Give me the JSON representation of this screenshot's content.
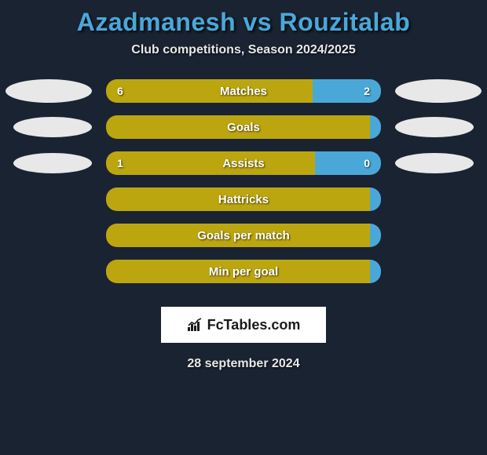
{
  "background_color": "#1a2332",
  "title": "Azadmanesh vs Rouzitalab",
  "title_color": "#4aa8d8",
  "subtitle": "Club competitions, Season 2024/2025",
  "player_left_color": "#bca610",
  "player_right_color": "#4aa8d8",
  "ellipse_color": "#e8e8e8",
  "stats": [
    {
      "label": "Matches",
      "left_value": "6",
      "right_value": "2",
      "left_pct": 75,
      "right_pct": 25,
      "show_ellipses": true,
      "ellipse_width": 110,
      "ellipse_height": 30
    },
    {
      "label": "Goals",
      "left_value": "",
      "right_value": "",
      "left_pct": 99,
      "right_pct": 1,
      "show_ellipses": true,
      "ellipse_width": 100,
      "ellipse_height": 26
    },
    {
      "label": "Assists",
      "left_value": "1",
      "right_value": "0",
      "left_pct": 76,
      "right_pct": 24,
      "show_ellipses": true,
      "ellipse_width": 100,
      "ellipse_height": 26
    },
    {
      "label": "Hattricks",
      "left_value": "",
      "right_value": "",
      "left_pct": 99,
      "right_pct": 1,
      "show_ellipses": false
    },
    {
      "label": "Goals per match",
      "left_value": "",
      "right_value": "",
      "left_pct": 99,
      "right_pct": 1,
      "show_ellipses": false
    },
    {
      "label": "Min per goal",
      "left_value": "",
      "right_value": "",
      "left_pct": 99,
      "right_pct": 1,
      "show_ellipses": false
    }
  ],
  "logo": {
    "text": "FcTables.com"
  },
  "footer_date": "28 september 2024"
}
